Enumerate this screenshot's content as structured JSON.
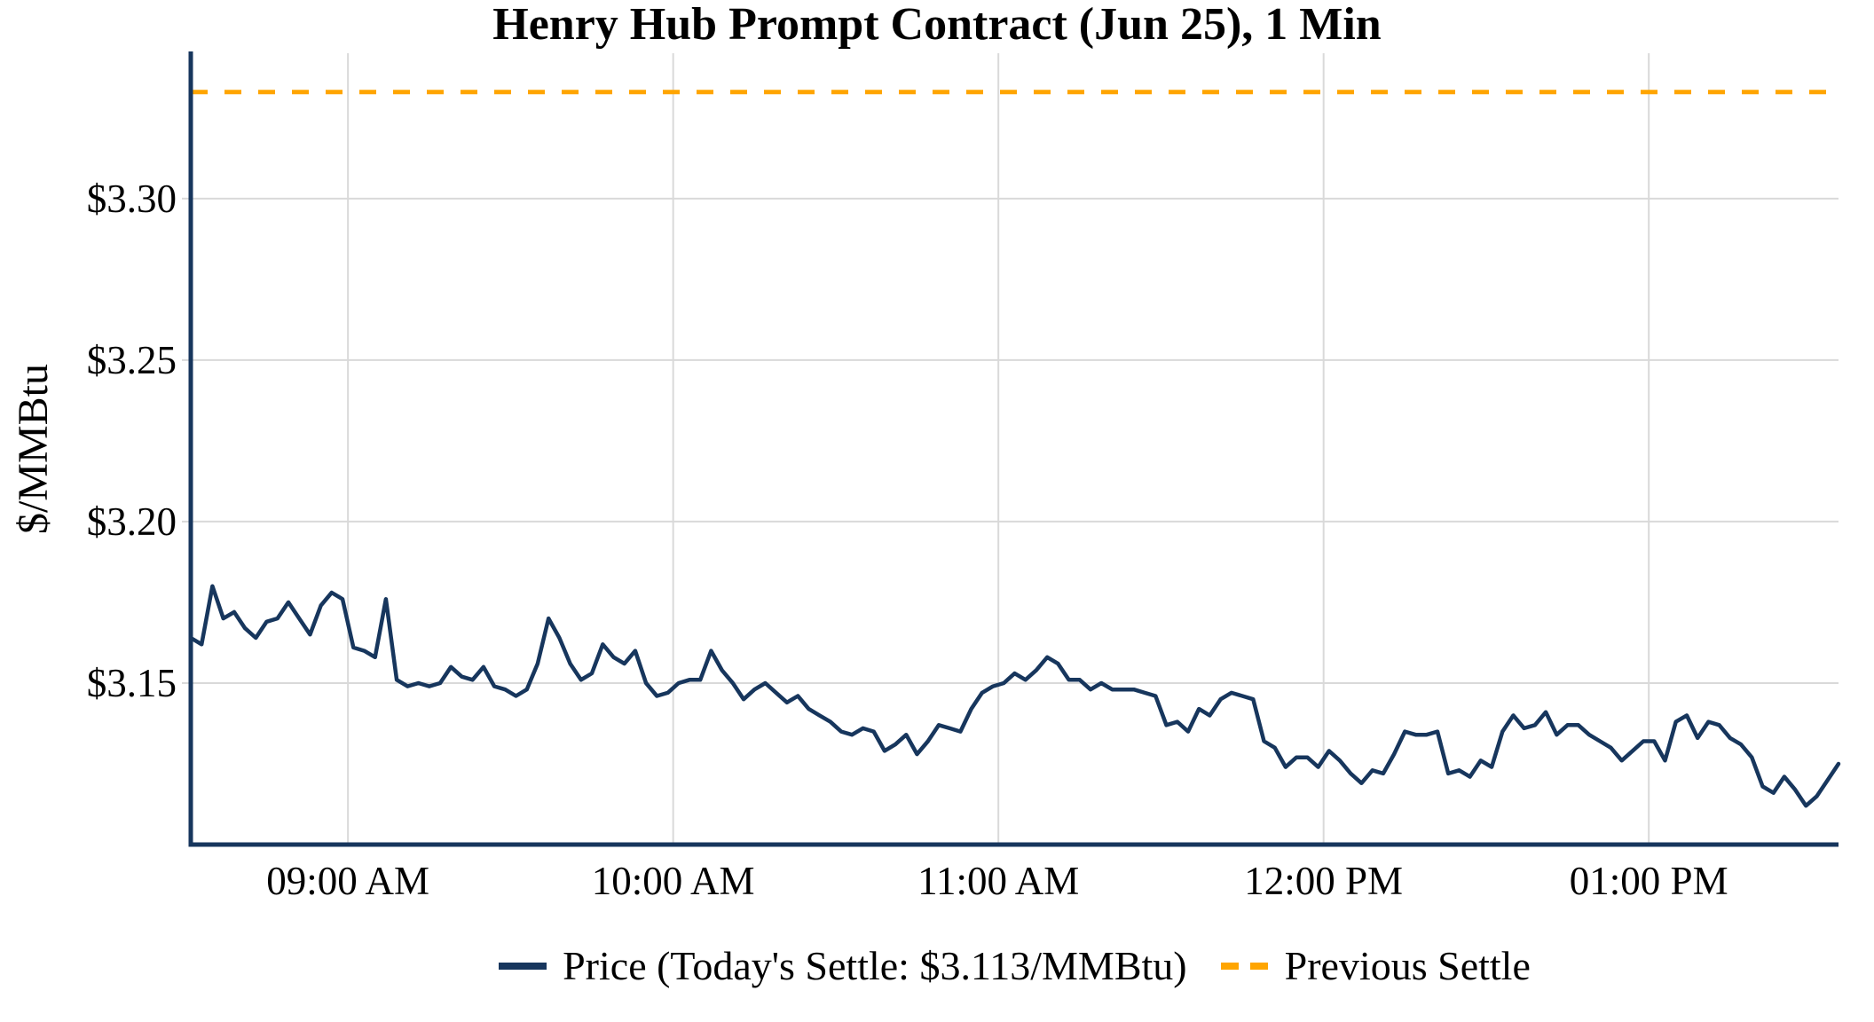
{
  "figure": {
    "title": "Henry Hub Prompt Contract (Jun 25), 1 Min",
    "y_axis_label": "$/MMBtu",
    "background": "#ffffff"
  },
  "legend": {
    "price_label": "Price (Today's Settle: $3.113/MMBtu)",
    "previous_settle_label": "Previous Settle"
  },
  "colors": {
    "price_line": "#17365d",
    "previous_settle_line": "#ffa500",
    "gridline": "#d9d9d9",
    "axis_spine": "#17365d",
    "text": "#000000"
  },
  "chart_data": {
    "type": "line",
    "title": "Henry Hub Prompt Contract (Jun 25), 1 Min",
    "xlabel": "",
    "ylabel": "$/MMBtu",
    "ylim": [
      3.1,
      3.345
    ],
    "grid": true,
    "legend_position": "bottom",
    "x_unit": "minutes since session start",
    "x_start_time": "08:31 AM",
    "x_end_time": "01:35 PM",
    "x_step_minutes": 2,
    "xlim_minutes": [
      0,
      304
    ],
    "x_ticks": [
      {
        "minute": 29,
        "label": "09:00 AM"
      },
      {
        "minute": 89,
        "label": "10:00 AM"
      },
      {
        "minute": 149,
        "label": "11:00 AM"
      },
      {
        "minute": 209,
        "label": "12:00 PM"
      },
      {
        "minute": 269,
        "label": "01:00 PM"
      }
    ],
    "y_ticks": [
      {
        "value": 3.15,
        "label": "$3.15"
      },
      {
        "value": 3.2,
        "label": "$3.20"
      },
      {
        "value": 3.25,
        "label": "$3.25"
      },
      {
        "value": 3.3,
        "label": "$3.30"
      }
    ],
    "previous_settle_value": 3.333,
    "todays_settle_value": 3.113,
    "series": [
      {
        "name": "Price (Today's Settle: $3.113/MMBtu)",
        "color": "#17365d",
        "style": "solid",
        "values": [
          3.164,
          3.162,
          3.18,
          3.17,
          3.172,
          3.167,
          3.164,
          3.169,
          3.17,
          3.175,
          3.17,
          3.165,
          3.174,
          3.178,
          3.176,
          3.161,
          3.16,
          3.158,
          3.176,
          3.151,
          3.149,
          3.15,
          3.149,
          3.15,
          3.155,
          3.152,
          3.151,
          3.155,
          3.149,
          3.148,
          3.146,
          3.148,
          3.156,
          3.17,
          3.164,
          3.156,
          3.151,
          3.153,
          3.162,
          3.158,
          3.156,
          3.16,
          3.15,
          3.146,
          3.147,
          3.15,
          3.151,
          3.151,
          3.16,
          3.154,
          3.15,
          3.145,
          3.148,
          3.15,
          3.147,
          3.144,
          3.146,
          3.142,
          3.14,
          3.138,
          3.135,
          3.134,
          3.136,
          3.135,
          3.129,
          3.131,
          3.134,
          3.128,
          3.132,
          3.137,
          3.136,
          3.135,
          3.142,
          3.147,
          3.149,
          3.15,
          3.153,
          3.151,
          3.154,
          3.158,
          3.156,
          3.151,
          3.151,
          3.148,
          3.15,
          3.148,
          3.148,
          3.148,
          3.147,
          3.146,
          3.137,
          3.138,
          3.135,
          3.142,
          3.14,
          3.145,
          3.147,
          3.146,
          3.145,
          3.132,
          3.13,
          3.124,
          3.127,
          3.127,
          3.124,
          3.129,
          3.126,
          3.122,
          3.119,
          3.123,
          3.122,
          3.128,
          3.135,
          3.134,
          3.134,
          3.135,
          3.122,
          3.123,
          3.121,
          3.126,
          3.124,
          3.135,
          3.14,
          3.136,
          3.137,
          3.141,
          3.134,
          3.137,
          3.137,
          3.134,
          3.132,
          3.13,
          3.126,
          3.129,
          3.132,
          3.132,
          3.126,
          3.138,
          3.14,
          3.133,
          3.138,
          3.137,
          3.133,
          3.131,
          3.127,
          3.118,
          3.116,
          3.121,
          3.117,
          3.112,
          3.115,
          3.12,
          3.125
        ]
      },
      {
        "name": "Previous Settle",
        "color": "#ffa500",
        "style": "dashed",
        "constant_value": 3.333
      }
    ]
  }
}
